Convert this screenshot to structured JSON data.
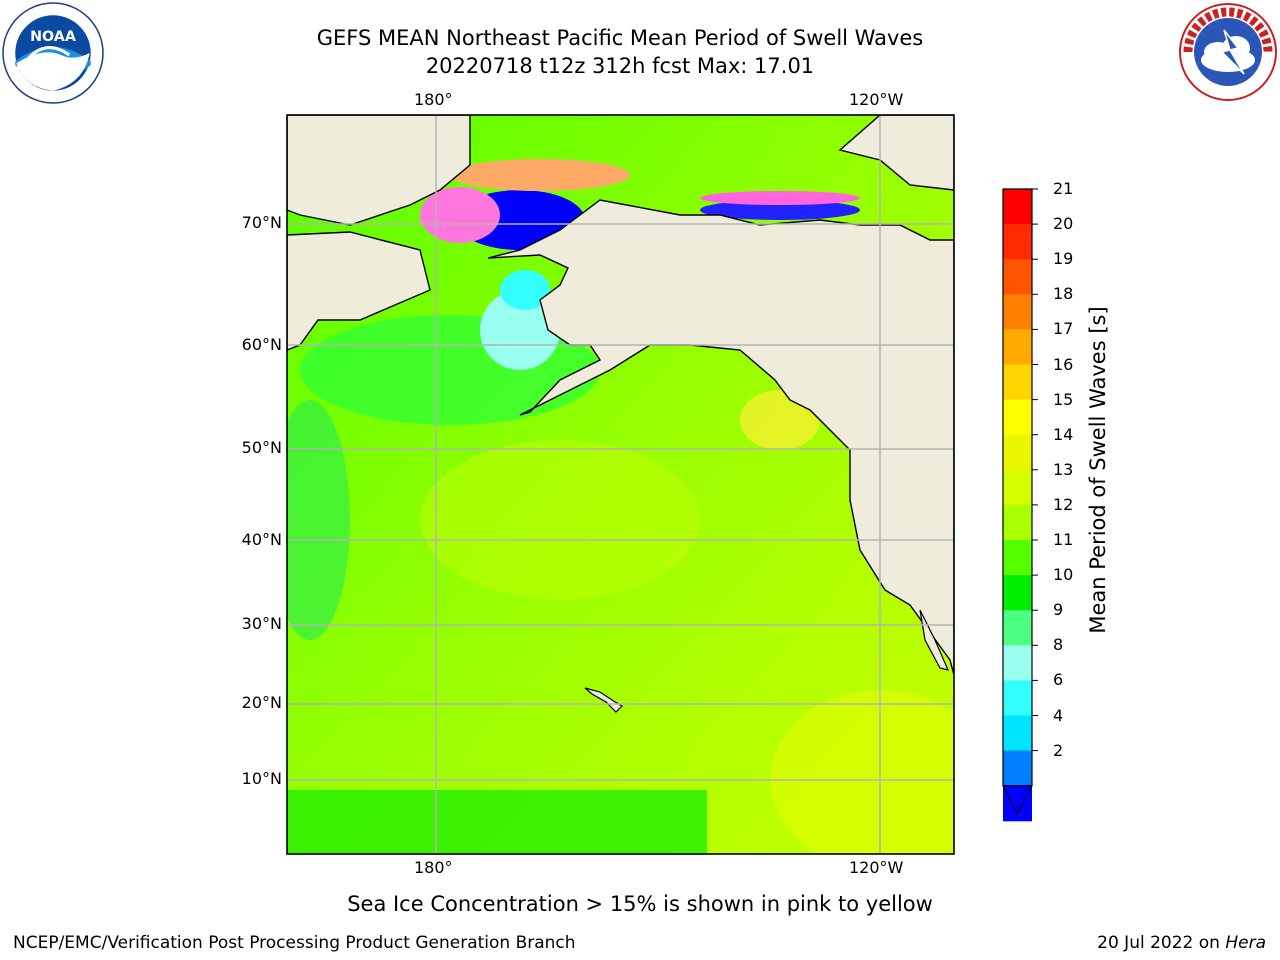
{
  "title": {
    "line1": "GEFS MEAN Northeast Pacific Mean Period of Swell Waves",
    "line2": "20220718 t12z 312h fcst   Max: 17.01"
  },
  "logos": {
    "left": {
      "name": "noaa-logo",
      "text": "NOAA",
      "ring_text": "NATIONAL OCEANIC AND ATMOSPHERIC ADMINISTRATION · U.S. DEPARTMENT OF COMMERCE"
    },
    "right": {
      "name": "nws-logo",
      "ring_text": "NATIONAL WEATHER SERVICE"
    }
  },
  "map": {
    "lon_ticks_top": [
      "180°",
      "120°W"
    ],
    "lon_ticks_bottom": [
      "180°",
      "120°W"
    ],
    "lat_ticks": [
      "70°N",
      "60°N",
      "50°N",
      "40°N",
      "30°N",
      "20°N",
      "10°N"
    ],
    "colors": {
      "land": "#efecdc",
      "grid": "#b4b4b4",
      "coast": "#000000"
    }
  },
  "colorbar": {
    "title": "Mean Period of Swell Waves [s]",
    "ticks": [
      "21",
      "20",
      "19",
      "18",
      "17",
      "16",
      "15",
      "14",
      "13",
      "12",
      "11",
      "10",
      "9",
      "8",
      "6",
      "4",
      "2"
    ],
    "colors_top_to_bottom": [
      "#ff0000",
      "#ff2b00",
      "#ff5500",
      "#ff8000",
      "#ffaa00",
      "#ffd500",
      "#ffff00",
      "#eaf500",
      "#d5ff00",
      "#aaff00",
      "#55ff00",
      "#00ee00",
      "#4cff80",
      "#99ffee",
      "#33ffff",
      "#00e5ff",
      "#0080ff",
      "#0000ff"
    ]
  },
  "footnote": "Sea Ice Concentration > 15% is shown in pink to yellow",
  "footer": {
    "credit": "NCEP/EMC/Verification Post Processing Product Generation Branch",
    "date": "20 Jul 2022 on ",
    "host": "Hera"
  }
}
